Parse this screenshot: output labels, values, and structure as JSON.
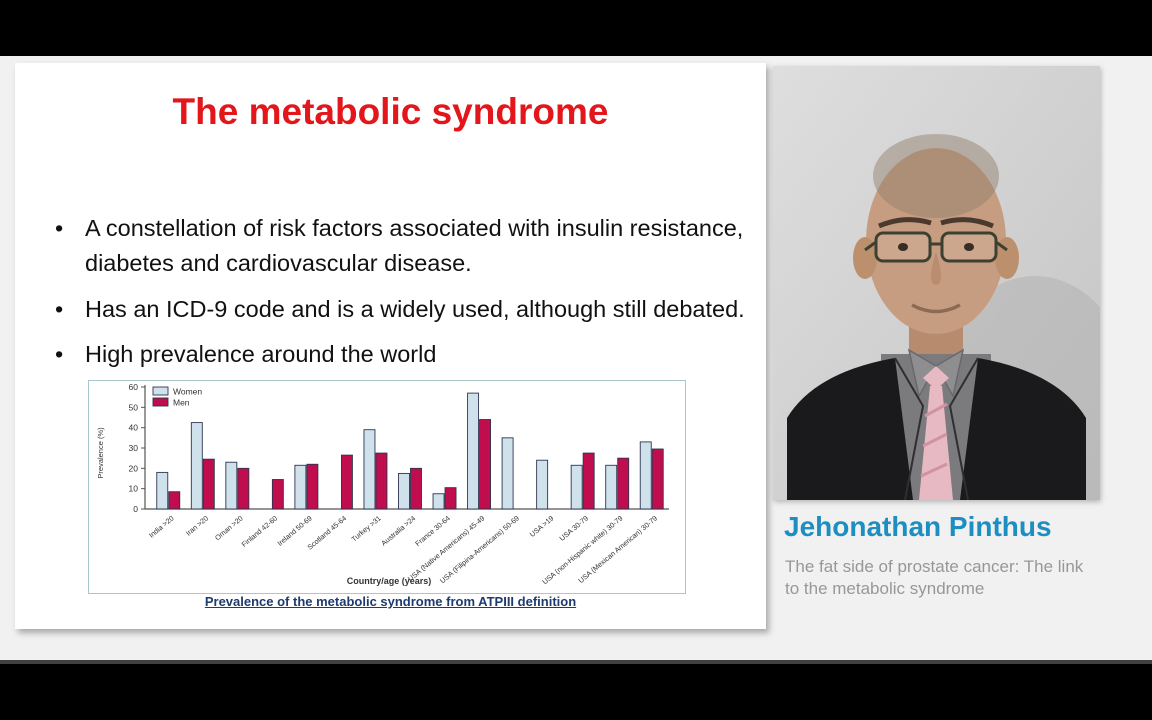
{
  "slide": {
    "title": "The metabolic syndrome",
    "bullets": [
      "A constellation of risk factors associated with insulin resistance, diabetes and cardiovascular disease.",
      "Has an ICD-9 code and is a widely used, although still debated.",
      "High prevalence around the world"
    ],
    "chart_caption": "Prevalence of the metabolic syndrome from ATPIII definition"
  },
  "speaker": {
    "name": "Jehonathan Pinthus",
    "talk_title_lines": [
      "The fat side of prostate cancer: The link",
      "to the metabolic syndrome"
    ]
  },
  "chart_data": {
    "type": "bar",
    "title": "",
    "xlabel": "Country/age (years)",
    "ylabel": "Prevalence (%)",
    "ylim": [
      0,
      60
    ],
    "yticks": [
      0,
      10,
      20,
      30,
      40,
      50,
      60
    ],
    "grid": false,
    "legend_position": "top-left",
    "categories": [
      "India >20",
      "Iran >20",
      "Oman >20",
      "Finland 42-60",
      "Ireland 50-69",
      "Scotland 45-64",
      "Turkey >31",
      "Australia >24",
      "France 30-64",
      "USA (Native Americans) 45-49",
      "USA (Filipina-Americans) 50-69",
      "USA >19",
      "USA 30-79",
      "USA (non-Hispanic white) 30-79",
      "USA (Mexican American) 30-79"
    ],
    "series": [
      {
        "name": "Women",
        "color": "#cfe1eb",
        "values": [
          18,
          42.5,
          23,
          null,
          21.5,
          null,
          39,
          17.5,
          7.5,
          57,
          35,
          24,
          21.5,
          21.5,
          33
        ]
      },
      {
        "name": "Men",
        "color": "#c00d4d",
        "values": [
          8.5,
          24.5,
          20,
          14.5,
          22,
          26.5,
          27.5,
          20,
          10.5,
          44,
          null,
          null,
          27.5,
          25,
          29.5
        ]
      }
    ]
  },
  "colors": {
    "title_red": "#e3161b",
    "speaker_name_blue": "#1c8ec1",
    "caption_navy": "#1e3a6e",
    "chart_border": "#a9c7cf",
    "bar_outline": "#2f3550",
    "women_bar": "#cfe1eb",
    "men_bar": "#c00d4d"
  }
}
